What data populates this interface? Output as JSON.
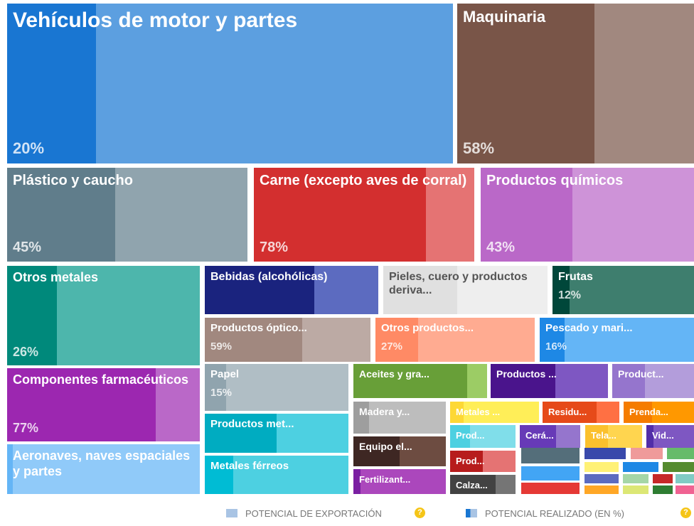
{
  "tiles": [
    {
      "label": "Vehículos de motor y partes",
      "pct": 20,
      "pct_label": "20%",
      "dark": "#1976d2",
      "light": "#5c9fe0"
    },
    {
      "label": "Maquinaria",
      "pct": 58,
      "pct_label": "58%",
      "dark": "#795548",
      "light": "#a1887f"
    },
    {
      "label": "Plástico y caucho",
      "pct": 45,
      "pct_label": "45%",
      "dark": "#607d8b",
      "light": "#90a4ae"
    },
    {
      "label": "Carne (excepto aves de corral)",
      "pct": 78,
      "pct_label": "78%",
      "dark": "#d32f2f",
      "light": "#e57373"
    },
    {
      "label": "Productos químicos",
      "pct": 43,
      "pct_label": "43%",
      "dark": "#ba68c8",
      "light": "#ce93d8"
    },
    {
      "label": "Otros metales",
      "pct": 26,
      "pct_label": "26%",
      "dark": "#00897b",
      "light": "#4db6ac"
    },
    {
      "label": "Componentes farmacéuticos",
      "pct": 77,
      "pct_label": "77%",
      "dark": "#9c27b0",
      "light": "#ba68c8"
    },
    {
      "label": "Aeronaves, naves espaciales y partes",
      "pct": 3,
      "dark": "#64b5f6",
      "light": "#90caf9"
    },
    {
      "label": "Bebidas (alcohólicas)",
      "pct": 63,
      "dark": "#1a237e",
      "light": "#5c6bc0"
    },
    {
      "label": "Pieles, cuero y productos deriva...",
      "pct": 45,
      "dark": "#e0e0e0",
      "light": "#eeeeee",
      "text_color": "#555555"
    },
    {
      "label": "Frutas",
      "pct": 12,
      "pct_label": "12%",
      "dark": "#00473a",
      "light": "#3e7e6e"
    },
    {
      "label": "Productos óptico...",
      "pct": 59,
      "pct_label": "59%",
      "dark": "#a1887f",
      "light": "#bcaaa4"
    },
    {
      "label": "Otros productos...",
      "pct": 27,
      "pct_label": "27%",
      "dark": "#ff8a65",
      "light": "#ffab91"
    },
    {
      "label": "Pescado y mari...",
      "pct": 16,
      "pct_label": "16%",
      "dark": "#1e88e5",
      "light": "#64b5f6"
    },
    {
      "label": "Papel",
      "pct": 15,
      "pct_label": "15%",
      "dark": "#90a4ae",
      "light": "#b0bec5"
    },
    {
      "label": "Aceites y gra...",
      "pct": 85,
      "dark": "#689f38",
      "light": "#9ccc65"
    },
    {
      "label": "Productos ...",
      "pct": 55,
      "dark": "#4a148c",
      "light": "#7e57c2"
    },
    {
      "label": "Product...",
      "pct": 40,
      "dark": "#9575cd",
      "light": "#b39ddb"
    },
    {
      "label": "Productos met...",
      "pct": 50,
      "dark": "#00acc1",
      "light": "#4dd0e1"
    },
    {
      "label": "Metales férreos",
      "pct": 20,
      "dark": "#00bcd4",
      "light": "#4dd0e1"
    },
    {
      "label": "Madera y...",
      "pct": 17,
      "dark": "#9e9e9e",
      "light": "#bdbdbd"
    },
    {
      "label": "Equipo el...",
      "pct": 50,
      "dark": "#3e2723",
      "light": "#6d4c41"
    },
    {
      "label": "Fertilizant...",
      "pct": 8,
      "dark": "#7b1fa2",
      "light": "#ab47bc"
    },
    {
      "label": "Metales ...",
      "pct": 15,
      "dark": "#fdd835",
      "light": "#ffee58"
    },
    {
      "label": "Residu...",
      "pct": 70,
      "dark": "#e64a19",
      "light": "#ff7043"
    },
    {
      "label": "Prenda...",
      "pct": 40,
      "dark": "#f57c00",
      "light": "#ff9800"
    },
    {
      "label": "Prod...",
      "pct": 30,
      "dark": "#4dd0e1",
      "light": "#80deea"
    },
    {
      "label": "Cerá...",
      "pct": 60,
      "dark": "#673ab7",
      "light": "#9575cd"
    },
    {
      "label": "Tela...",
      "pct": 40,
      "dark": "#fbc02d",
      "light": "#ffd54f"
    },
    {
      "label": "Vid...",
      "pct": 15,
      "dark": "#512da8",
      "light": "#7e57c2"
    },
    {
      "label": "Prod...",
      "pct": 50,
      "dark": "#b71c1c",
      "light": "#e57373"
    },
    {
      "label": "Calza...",
      "pct": 70,
      "dark": "#424242",
      "light": "#757575"
    }
  ],
  "legend": {
    "export_potential": "POTENCIAL DE EXPORTACIÓN",
    "realized": "POTENCIAL REALIZADO (EN %)",
    "help": "?"
  }
}
